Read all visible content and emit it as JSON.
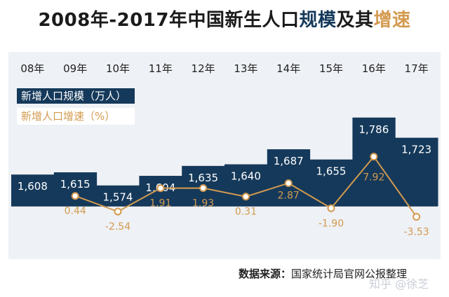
{
  "title": {
    "part1": "2008年-2017年中国新生人口",
    "part2": "规模",
    "part3": "及其",
    "part4": "增速"
  },
  "chart_data": {
    "type": "bar+line",
    "categories": [
      "08年",
      "09年",
      "10年",
      "11年",
      "12年",
      "13年",
      "14年",
      "15年",
      "16年",
      "17年"
    ],
    "series": [
      {
        "name": "新增人口规模（万人）",
        "type": "bar",
        "color": "#15395a",
        "values": [
          1608,
          1615,
          1574,
          1604,
          1635,
          1640,
          1687,
          1655,
          1786,
          1723
        ],
        "labels": [
          "1,608",
          "1,615",
          "1,574",
          "1,604",
          "1,635",
          "1,640",
          "1,687",
          "1,655",
          "1,786",
          "1,723"
        ]
      },
      {
        "name": "新增人口增速（%）",
        "type": "line",
        "color": "#d39a4f",
        "values": [
          null,
          0.44,
          -2.54,
          1.91,
          1.93,
          0.31,
          2.87,
          -1.9,
          7.92,
          -3.53
        ],
        "labels": [
          "",
          "0.44",
          "-2.54",
          "1.91",
          "1.93",
          "0.31",
          "2.87",
          "-1.90",
          "7.92",
          "-3.53"
        ]
      }
    ],
    "legend": {
      "placement": "top-left"
    }
  },
  "source": {
    "label": "数据来源：",
    "text": "国家统计局官网公报整理"
  },
  "watermark": "知乎 @徐芝"
}
